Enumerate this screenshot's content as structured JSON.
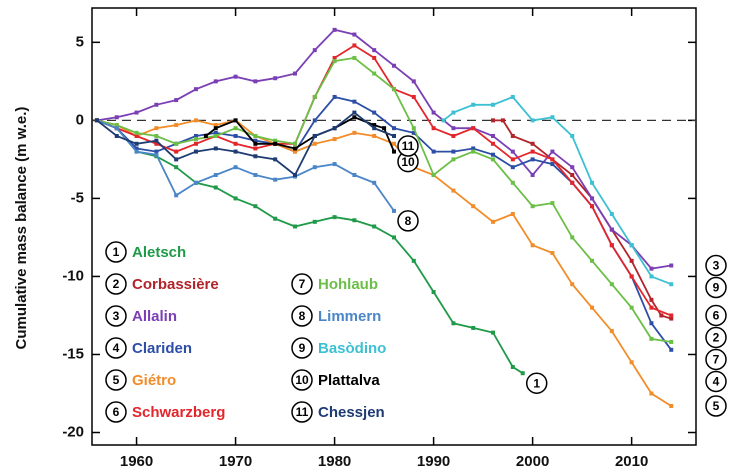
{
  "chart_data": {
    "type": "line",
    "ylabel": "Cumulative mass balance (m w.e.)",
    "xlim": [
      1955.5,
      2016.5
    ],
    "ylim": [
      -20.8,
      7.2
    ],
    "xticks": [
      1960,
      1970,
      1980,
      1990,
      2000,
      2010
    ],
    "yticks": [
      5,
      0,
      -5,
      -10,
      -15,
      -20
    ],
    "hlines": [
      0
    ],
    "series": [
      {
        "number": "1",
        "name": "Aletsch",
        "color": "#1f9a48",
        "x": [
          1956,
          1958,
          1960,
          1962,
          1964,
          1966,
          1968,
          1970,
          1972,
          1974,
          1976,
          1978,
          1980,
          1982,
          1984,
          1986,
          1988,
          1990,
          1992,
          1994,
          1996,
          1998,
          1999
        ],
        "values": [
          0,
          -0.5,
          -2,
          -2.3,
          -3,
          -4,
          -4.3,
          -5,
          -5.5,
          -6.3,
          -6.8,
          -6.5,
          -6.2,
          -6.4,
          -6.8,
          -7.5,
          -9,
          -11,
          -13,
          -13.3,
          -13.6,
          -15.8,
          -16.2
        ]
      },
      {
        "number": "2",
        "name": "Corbassière",
        "color": "#b2242a",
        "x": [
          1996,
          1997,
          1998,
          2000,
          2002,
          2004,
          2006,
          2008,
          2010,
          2012,
          2013,
          2014
        ],
        "values": [
          0,
          0,
          -1,
          -1.5,
          -2.5,
          -3.5,
          -5,
          -7,
          -9,
          -11.5,
          -12.5,
          -12.7
        ]
      },
      {
        "number": "3",
        "name": "Allalin",
        "color": "#7b3fb5",
        "x": [
          1956,
          1958,
          1960,
          1962,
          1964,
          1966,
          1968,
          1970,
          1972,
          1974,
          1976,
          1978,
          1980,
          1982,
          1984,
          1986,
          1988,
          1990,
          1992,
          1994,
          1996,
          1998,
          2000,
          2002,
          2004,
          2006,
          2008,
          2010,
          2012,
          2014
        ],
        "values": [
          0,
          0.2,
          0.5,
          1,
          1.3,
          2,
          2.5,
          2.8,
          2.5,
          2.7,
          3,
          4.5,
          5.8,
          5.5,
          4.5,
          3.5,
          2.5,
          0.5,
          -0.5,
          -0.5,
          -1,
          -2,
          -3.5,
          -2,
          -3,
          -5,
          -7,
          -8,
          -9.5,
          -9.3
        ]
      },
      {
        "number": "4",
        "name": "Clariden",
        "color": "#2d4ea6",
        "x": [
          1956,
          1958,
          1960,
          1962,
          1964,
          1966,
          1968,
          1970,
          1972,
          1974,
          1976,
          1978,
          1980,
          1982,
          1984,
          1986,
          1988,
          1990,
          1992,
          1994,
          1996,
          1998,
          2000,
          2002,
          2004,
          2006,
          2008,
          2010,
          2012,
          2014
        ],
        "values": [
          0,
          -0.5,
          -1.8,
          -2,
          -1.5,
          -1,
          -0.8,
          -1,
          -1.3,
          -1.5,
          -2,
          0,
          1.5,
          1.2,
          0.5,
          -0.5,
          -0.8,
          -2,
          -2,
          -1.8,
          -2.2,
          -3,
          -2.5,
          -2.8,
          -4,
          -5.5,
          -8,
          -10,
          -13,
          -14.7
        ]
      },
      {
        "number": "5",
        "name": "Giétro",
        "color": "#f28c28",
        "x": [
          1956,
          1958,
          1960,
          1962,
          1964,
          1966,
          1968,
          1970,
          1972,
          1974,
          1976,
          1978,
          1980,
          1982,
          1984,
          1986,
          1988,
          1990,
          1992,
          1994,
          1996,
          1998,
          2000,
          2002,
          2004,
          2006,
          2008,
          2010,
          2012,
          2014
        ],
        "values": [
          0,
          -0.3,
          -1,
          -0.5,
          -0.3,
          0,
          -0.3,
          0,
          -1,
          -1.5,
          -2,
          -1.5,
          -1.2,
          -0.8,
          -1,
          -1.5,
          -3,
          -3.5,
          -4.5,
          -5.5,
          -6.5,
          -6,
          -8,
          -8.5,
          -10.5,
          -12,
          -13.5,
          -15.5,
          -17.5,
          -18.3
        ]
      },
      {
        "number": "6",
        "name": "Schwarzberg",
        "color": "#e3262c",
        "x": [
          1956,
          1958,
          1960,
          1962,
          1964,
          1966,
          1968,
          1970,
          1972,
          1974,
          1976,
          1978,
          1980,
          1982,
          1984,
          1986,
          1988,
          1990,
          1992,
          1994,
          1996,
          1998,
          2000,
          2002,
          2004,
          2006,
          2008,
          2010,
          2012,
          2014
        ],
        "values": [
          0,
          -0.5,
          -1,
          -1.5,
          -2,
          -1.5,
          -1,
          -1.5,
          -1.8,
          -1.5,
          -1.5,
          1.5,
          4,
          4.8,
          4,
          2,
          1.5,
          -0.5,
          -1,
          -0.5,
          -1.5,
          -2.5,
          -2,
          -2.5,
          -4,
          -5.5,
          -8,
          -10,
          -12,
          -12.5
        ]
      },
      {
        "number": "7",
        "name": "Hohlaub",
        "color": "#6bbf47",
        "x": [
          1956,
          1958,
          1960,
          1962,
          1964,
          1966,
          1968,
          1970,
          1972,
          1974,
          1976,
          1978,
          1980,
          1982,
          1984,
          1986,
          1988,
          1990,
          1992,
          1994,
          1996,
          1998,
          2000,
          2002,
          2004,
          2006,
          2008,
          2010,
          2012,
          2014
        ],
        "values": [
          0,
          -0.3,
          -0.8,
          -1,
          -1.5,
          -1.2,
          -1,
          -0.5,
          -1,
          -1.3,
          -1.5,
          1.5,
          3.8,
          4,
          3,
          2,
          -0.5,
          -3.5,
          -2.5,
          -2,
          -2.5,
          -4,
          -5.5,
          -5.3,
          -7.5,
          -9,
          -10.5,
          -12,
          -14,
          -14.2
        ]
      },
      {
        "number": "8",
        "name": "Limmern",
        "color": "#4a86c8",
        "x": [
          1956,
          1958,
          1960,
          1962,
          1964,
          1966,
          1968,
          1970,
          1972,
          1974,
          1976,
          1978,
          1980,
          1982,
          1984,
          1986
        ],
        "values": [
          0,
          -0.5,
          -2,
          -2.2,
          -4.8,
          -4,
          -3.5,
          -3,
          -3.5,
          -3.8,
          -3.6,
          -3,
          -2.8,
          -3.5,
          -4,
          -5.8
        ]
      },
      {
        "number": "9",
        "name": "Basòdino",
        "color": "#3cc0d2",
        "x": [
          1991,
          1992,
          1994,
          1996,
          1998,
          2000,
          2002,
          2004,
          2006,
          2008,
          2010,
          2012,
          2014
        ],
        "values": [
          0,
          0.5,
          1,
          1,
          1.5,
          0,
          0.2,
          -1,
          -4,
          -6,
          -8,
          -10,
          -10.5
        ]
      },
      {
        "number": "10",
        "name": "Plattalva",
        "color": "#000000",
        "x": [
          1967,
          1968,
          1970,
          1972,
          1974,
          1976,
          1978,
          1980,
          1982,
          1984,
          1985,
          1986
        ],
        "values": [
          -1,
          -0.5,
          0,
          -1.5,
          -1.5,
          -1.8,
          -1,
          -0.5,
          0.2,
          -0.3,
          -0.5,
          -2
        ]
      },
      {
        "number": "11",
        "name": "Chessjen",
        "color": "#1f3b73",
        "x": [
          1956,
          1958,
          1960,
          1962,
          1964,
          1966,
          1968,
          1970,
          1972,
          1974,
          1976,
          1978,
          1980,
          1982,
          1984,
          1986
        ],
        "values": [
          0,
          -1,
          -1.5,
          -1.3,
          -2.5,
          -2,
          -1.8,
          -2,
          -2.3,
          -2.5,
          -3.5,
          -1,
          -0.5,
          0.5,
          -0.5,
          -1
        ]
      }
    ]
  }
}
